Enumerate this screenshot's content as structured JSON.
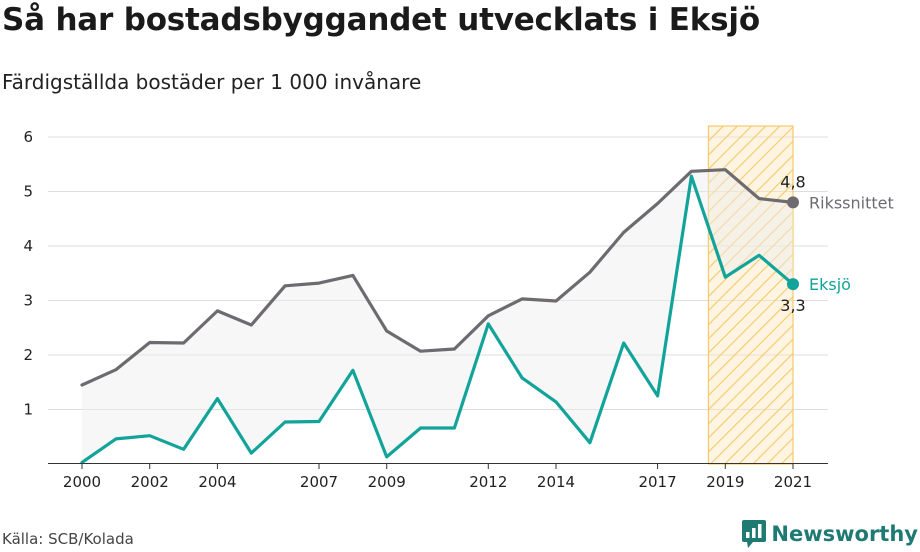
{
  "title": "Så har bostadsbyggandet utvecklats i Eksjö",
  "subtitle": "Färdigställda bostäder per 1 000 invånare",
  "source": "Källa: SCB/Kolada",
  "brand": "Newsworthy",
  "colors": {
    "national": "#6d6b70",
    "local": "#12a39a",
    "highlight_fill": "#fbe7bd",
    "highlight_stroke": "#f6c96a",
    "grid": "#dddddd",
    "brand": "#1f7a74"
  },
  "chart_data": {
    "type": "line",
    "title": "Så har bostadsbyggandet utvecklats i Eksjö",
    "subtitle": "Färdigställda bostäder per 1 000 invånare",
    "x": [
      2000,
      2001,
      2002,
      2003,
      2004,
      2005,
      2006,
      2007,
      2008,
      2009,
      2010,
      2011,
      2012,
      2013,
      2014,
      2015,
      2016,
      2017,
      2018,
      2019,
      2020,
      2021
    ],
    "x_tick_labels": [
      "2000",
      "2002",
      "2004",
      "2007",
      "2009",
      "2012",
      "2014",
      "2017",
      "2019",
      "2021"
    ],
    "ylim": [
      0,
      6
    ],
    "y_ticks": [
      1,
      2,
      3,
      4,
      5,
      6
    ],
    "grid": true,
    "highlight_range": [
      2019,
      2021
    ],
    "series": [
      {
        "name": "Rikssnittet",
        "end_label": "4,8",
        "values": [
          1.45,
          1.73,
          2.23,
          2.22,
          2.81,
          2.55,
          3.27,
          3.32,
          3.46,
          2.44,
          2.07,
          2.11,
          2.72,
          3.03,
          2.99,
          3.52,
          4.25,
          4.78,
          5.37,
          5.4,
          4.87,
          4.8
        ]
      },
      {
        "name": "Eksjö",
        "end_label": "3,3",
        "values": [
          0.03,
          0.46,
          0.52,
          0.27,
          1.2,
          0.2,
          0.77,
          0.78,
          1.72,
          0.13,
          0.66,
          0.66,
          2.57,
          1.58,
          1.14,
          0.39,
          2.22,
          1.25,
          5.28,
          3.43,
          3.83,
          3.3
        ]
      }
    ]
  }
}
